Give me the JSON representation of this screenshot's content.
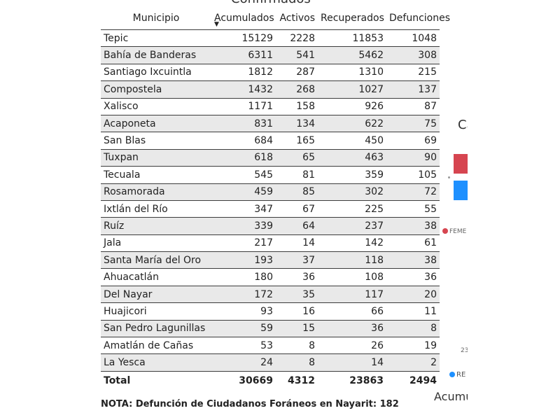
{
  "title_clipped": "Confirmados",
  "table": {
    "headers": {
      "municipio": "Municipio",
      "acumulados": "Acumulados",
      "activos": "Activos",
      "recuperados": "Recuperados",
      "defunciones": "Defunciones"
    },
    "sort_indicator": "▼",
    "rows": [
      {
        "municipio": "Tepic",
        "acumulados": "15129",
        "activos": "2228",
        "recuperados": "11853",
        "defunciones": "1048"
      },
      {
        "municipio": "Bahía de Banderas",
        "acumulados": "6311",
        "activos": "541",
        "recuperados": "5462",
        "defunciones": "308"
      },
      {
        "municipio": "Santiago Ixcuintla",
        "acumulados": "1812",
        "activos": "287",
        "recuperados": "1310",
        "defunciones": "215"
      },
      {
        "municipio": "Compostela",
        "acumulados": "1432",
        "activos": "268",
        "recuperados": "1027",
        "defunciones": "137"
      },
      {
        "municipio": "Xalisco",
        "acumulados": "1171",
        "activos": "158",
        "recuperados": "926",
        "defunciones": "87"
      },
      {
        "municipio": "Acaponeta",
        "acumulados": "831",
        "activos": "134",
        "recuperados": "622",
        "defunciones": "75"
      },
      {
        "municipio": "San Blas",
        "acumulados": "684",
        "activos": "165",
        "recuperados": "450",
        "defunciones": "69"
      },
      {
        "municipio": "Tuxpan",
        "acumulados": "618",
        "activos": "65",
        "recuperados": "463",
        "defunciones": "90"
      },
      {
        "municipio": "Tecuala",
        "acumulados": "545",
        "activos": "81",
        "recuperados": "359",
        "defunciones": "105"
      },
      {
        "municipio": "Rosamorada",
        "acumulados": "459",
        "activos": "85",
        "recuperados": "302",
        "defunciones": "72"
      },
      {
        "municipio": "Ixtlán del Río",
        "acumulados": "347",
        "activos": "67",
        "recuperados": "225",
        "defunciones": "55"
      },
      {
        "municipio": "Ruíz",
        "acumulados": "339",
        "activos": "64",
        "recuperados": "237",
        "defunciones": "38"
      },
      {
        "municipio": "Jala",
        "acumulados": "217",
        "activos": "14",
        "recuperados": "142",
        "defunciones": "61"
      },
      {
        "municipio": "Santa María del Oro",
        "acumulados": "193",
        "activos": "37",
        "recuperados": "118",
        "defunciones": "38"
      },
      {
        "municipio": "Ahuacatlán",
        "acumulados": "180",
        "activos": "36",
        "recuperados": "108",
        "defunciones": "36"
      },
      {
        "municipio": "Del Nayar",
        "acumulados": "172",
        "activos": "35",
        "recuperados": "117",
        "defunciones": "20"
      },
      {
        "municipio": "Huajicori",
        "acumulados": "93",
        "activos": "16",
        "recuperados": "66",
        "defunciones": "11"
      },
      {
        "municipio": "San Pedro Lagunillas",
        "acumulados": "59",
        "activos": "15",
        "recuperados": "36",
        "defunciones": "8"
      },
      {
        "municipio": "Amatlán de Cañas",
        "acumulados": "53",
        "activos": "8",
        "recuperados": "26",
        "defunciones": "19"
      },
      {
        "municipio": "La Yesca",
        "acumulados": "24",
        "activos": "8",
        "recuperados": "14",
        "defunciones": "2"
      }
    ],
    "total": {
      "municipio": "Total",
      "acumulados": "30669",
      "activos": "4312",
      "recuperados": "23863",
      "defunciones": "2494"
    }
  },
  "note": "NOTA: Defunción de Ciudadanos Foráneos en Nayarit: 182",
  "side_chart": {
    "title_clipped": "Ca",
    "legend_female": "FEME",
    "legend_re": "RE",
    "tick": "23",
    "axis_label_clipped": "Acumu",
    "colors": {
      "female": "#d64550",
      "blue": "#1e90ff"
    }
  }
}
